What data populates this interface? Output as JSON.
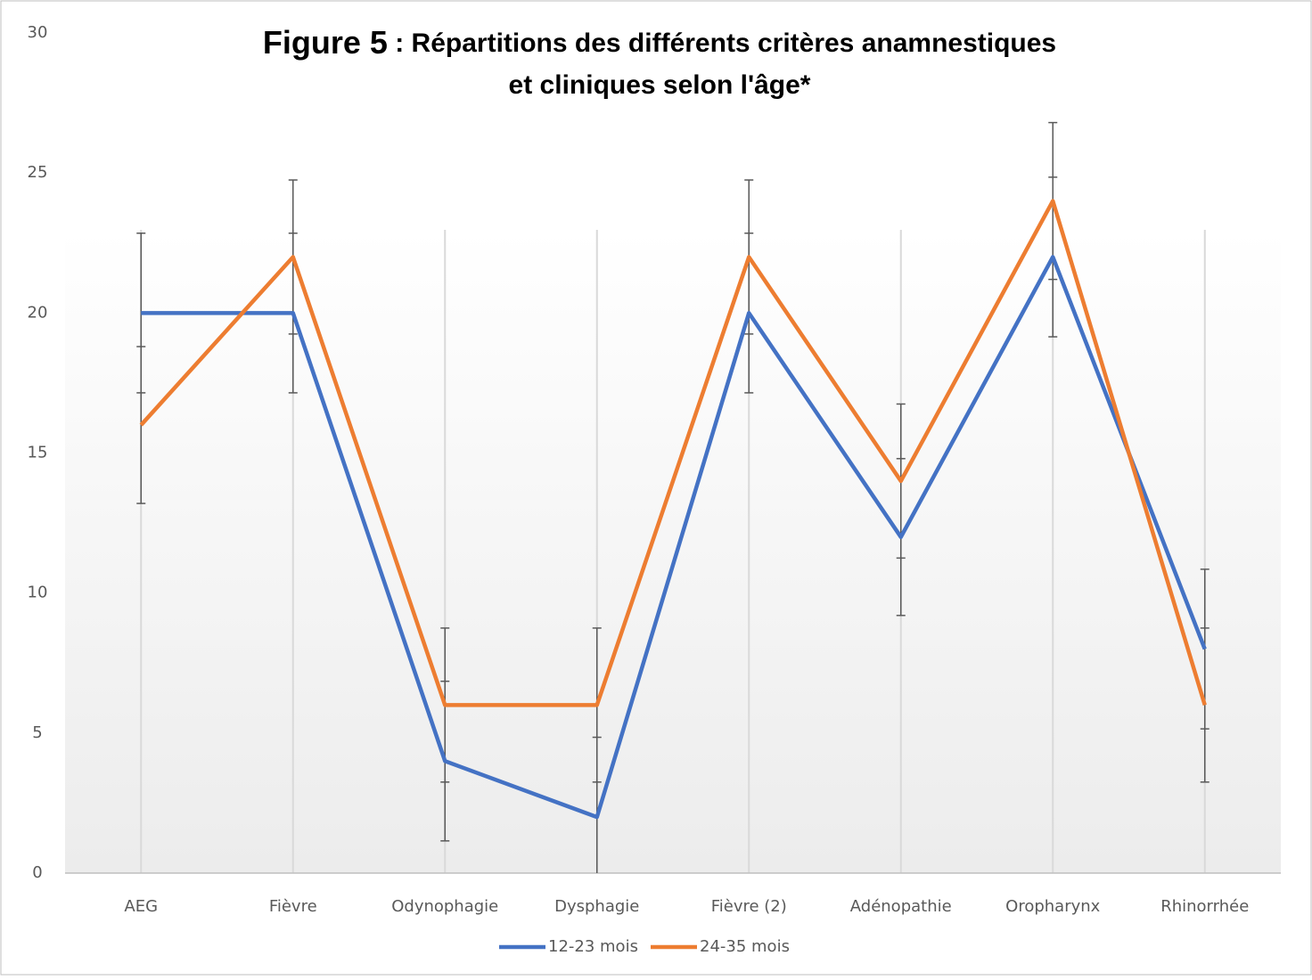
{
  "chart_data": {
    "type": "line",
    "title": [
      "Figure 5",
      " : Répartitions des différents critères anamnestiques",
      "et cliniques selon l'âge*"
    ],
    "categories": [
      "AEG",
      "Fièvre",
      "Odynophagie",
      "Dysphagie",
      "Fièvre (2)",
      "Adénopathie",
      "Oropharynx",
      "Rhinorrhée"
    ],
    "series": [
      {
        "name": "12-23 mois",
        "color": "#4472c4",
        "values": [
          20,
          20,
          4,
          2,
          20,
          12,
          22,
          8
        ],
        "errors": [
          2.85,
          2.85,
          2.85,
          2.85,
          2.85,
          2.8,
          2.85,
          2.85
        ]
      },
      {
        "name": "24-35 mois",
        "color": "#ed7d31",
        "values": [
          16,
          22,
          6,
          6,
          22,
          14,
          24,
          6
        ],
        "errors": [
          2.8,
          2.75,
          2.75,
          2.75,
          2.75,
          2.75,
          2.8,
          2.75
        ]
      }
    ],
    "ylim": [
      0,
      30
    ],
    "yticks": [
      0,
      5,
      10,
      15,
      20,
      25,
      30
    ],
    "grid": true,
    "legend": "bottom"
  }
}
